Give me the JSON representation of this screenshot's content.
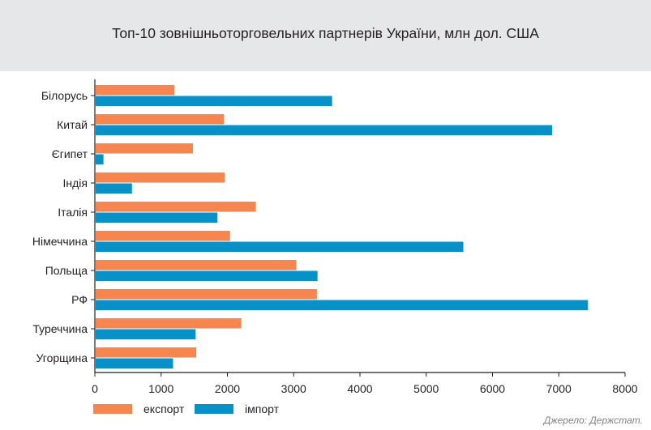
{
  "colors": {
    "export": "#f5864f",
    "import": "#0891c9",
    "axis": "#231f20",
    "header_bg": "#e6e7e8"
  },
  "chart_data": {
    "type": "bar",
    "orientation": "horizontal",
    "title": "Топ-10 зовнішньоторговельних партнерів України, млн дол. США",
    "categories": [
      "Білорусь",
      "Китай",
      "Єгипет",
      "Індія",
      "Італія",
      "Німеччина",
      "Польща",
      "РФ",
      "Туреччина",
      "Угорщина"
    ],
    "series": [
      {
        "name": "експорт",
        "values": [
          1200,
          1950,
          1480,
          1960,
          2430,
          2040,
          3040,
          3350,
          2210,
          1530
        ]
      },
      {
        "name": "імпорт",
        "values": [
          3580,
          6900,
          130,
          560,
          1850,
          5560,
          3360,
          7440,
          1520,
          1180
        ]
      }
    ],
    "xlim": [
      0,
      8000
    ],
    "xticks": [
      "0",
      "1000",
      "2000",
      "3000",
      "4000",
      "5000",
      "6000",
      "7000",
      "8000"
    ],
    "legend_position": "bottom-left",
    "grid": false
  },
  "source": "Джерело: Держстат."
}
